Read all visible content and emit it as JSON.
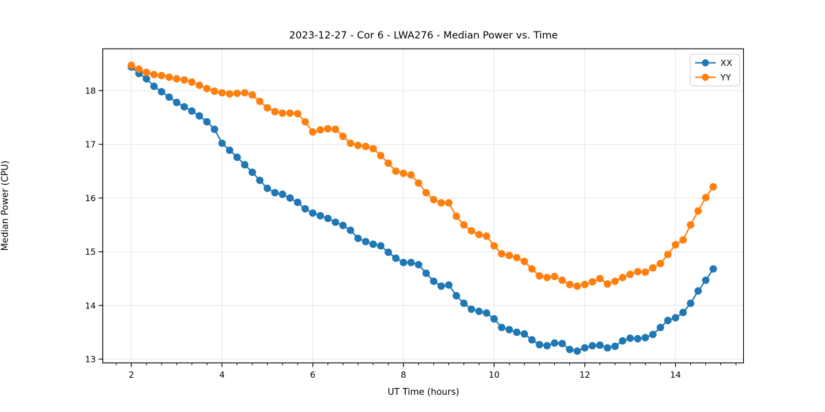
{
  "chart_data": {
    "type": "line",
    "title": "2023-12-27 - Cor 6 - LWA276 - Median Power vs. Time",
    "xlabel": "UT Time (hours)",
    "ylabel": "Median Power (CPU)",
    "grid": true,
    "legend_position": "upper right",
    "xlim": [
      1.37,
      15.5
    ],
    "ylim": [
      12.93,
      18.78
    ],
    "xticks": [
      2,
      4,
      6,
      8,
      10,
      12,
      14
    ],
    "x_minor_step": 0.33333,
    "yticks": [
      13,
      14,
      15,
      16,
      17,
      18
    ],
    "x": [
      2,
      2.167,
      2.333,
      2.5,
      2.667,
      2.833,
      3,
      3.167,
      3.333,
      3.5,
      3.667,
      3.833,
      4,
      4.167,
      4.333,
      4.5,
      4.667,
      4.833,
      5,
      5.167,
      5.333,
      5.5,
      5.667,
      5.833,
      6,
      6.167,
      6.333,
      6.5,
      6.667,
      6.833,
      7,
      7.167,
      7.333,
      7.5,
      7.667,
      7.833,
      8,
      8.167,
      8.333,
      8.5,
      8.667,
      8.833,
      9,
      9.167,
      9.333,
      9.5,
      9.667,
      9.833,
      10,
      10.167,
      10.333,
      10.5,
      10.667,
      10.833,
      11,
      11.167,
      11.333,
      11.5,
      11.667,
      11.833,
      12,
      12.167,
      12.333,
      12.5,
      12.667,
      12.833,
      13,
      13.167,
      13.333,
      13.5,
      13.667,
      13.833,
      14,
      14.167,
      14.333,
      14.5,
      14.667,
      14.833
    ],
    "series": [
      {
        "name": "XX",
        "color": "#1f77b4",
        "values": [
          18.44,
          18.32,
          18.22,
          18.08,
          17.98,
          17.88,
          17.78,
          17.7,
          17.62,
          17.53,
          17.42,
          17.28,
          17.02,
          16.89,
          16.76,
          16.62,
          16.48,
          16.33,
          16.18,
          16.1,
          16.07,
          16.0,
          15.92,
          15.8,
          15.72,
          15.67,
          15.62,
          15.55,
          15.49,
          15.4,
          15.25,
          15.19,
          15.14,
          15.11,
          14.99,
          14.88,
          14.8,
          14.8,
          14.76,
          14.6,
          14.45,
          14.36,
          14.38,
          14.18,
          14.04,
          13.93,
          13.89,
          13.86,
          13.75,
          13.59,
          13.55,
          13.5,
          13.47,
          13.36,
          13.27,
          13.25,
          13.3,
          13.29,
          13.18,
          13.15,
          13.21,
          13.25,
          13.26,
          13.21,
          13.24,
          13.34,
          13.39,
          13.38,
          13.4,
          13.46,
          13.59,
          13.72,
          13.77,
          13.87,
          14.04,
          14.27,
          14.47,
          14.68
        ]
      },
      {
        "name": "YY",
        "color": "#ff7f0e",
        "values": [
          18.47,
          18.4,
          18.34,
          18.3,
          18.28,
          18.25,
          18.22,
          18.2,
          18.16,
          18.1,
          18.04,
          17.99,
          17.96,
          17.94,
          17.95,
          17.96,
          17.92,
          17.8,
          17.68,
          17.61,
          17.58,
          17.58,
          17.57,
          17.42,
          17.23,
          17.27,
          17.29,
          17.28,
          17.15,
          17.02,
          16.98,
          16.96,
          16.92,
          16.79,
          16.65,
          16.5,
          16.46,
          16.43,
          16.28,
          16.1,
          15.97,
          15.91,
          15.91,
          15.66,
          15.5,
          15.39,
          15.32,
          15.29,
          15.11,
          14.96,
          14.93,
          14.89,
          14.82,
          14.68,
          14.55,
          14.52,
          14.54,
          14.47,
          14.39,
          14.36,
          14.39,
          14.44,
          14.5,
          14.4,
          14.45,
          14.52,
          14.58,
          14.63,
          14.62,
          14.7,
          14.78,
          14.95,
          15.13,
          15.22,
          15.5,
          15.76,
          16.01,
          16.21
        ]
      }
    ]
  }
}
